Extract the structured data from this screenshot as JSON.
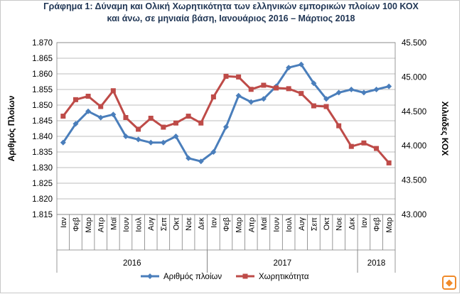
{
  "chart_data": {
    "type": "line",
    "title_line1": "Γράφημα 1: Δύναμη και Ολική Χωρητικότητα των ελληνικών εμπορικών πλοίων 100 ΚΟΧ",
    "title_line2": "και άνω, σε μηνιαία βάση, Ιανουάριος  2016 – Μάρτιος  2018",
    "ylabel_left": "Αριθμός Πλοίων",
    "ylabel_right": "Χιλιάδες ΚΟΧ",
    "categories": [
      "Ιαν",
      "Φεβ",
      "Μαρ",
      "Απρ",
      "Μαϊ",
      "Ιουν",
      "Ιουλ",
      "Αυγ",
      "Σεπ",
      "Οκτ",
      "Νοε",
      "Δεκ",
      "Ιαν",
      "Φεβ",
      "Μαρ",
      "Απρ",
      "Μαϊ",
      "Ιουν",
      "Ιουλ",
      "Αυγ",
      "Σεπ",
      "Οκτ",
      "Νοε",
      "Δεκ",
      "Ιαν",
      "Φεβ",
      "Μαρ"
    ],
    "year_groups": [
      {
        "label": "2016",
        "start": 0,
        "end": 11
      },
      {
        "label": "2017",
        "start": 12,
        "end": 23
      },
      {
        "label": "2018",
        "start": 24,
        "end": 26
      }
    ],
    "left_axis": {
      "min": 1815,
      "max": 1870,
      "step": 5,
      "tick_labels": [
        "1.815",
        "1.820",
        "1.825",
        "1.830",
        "1.835",
        "1.840",
        "1.845",
        "1.850",
        "1.855",
        "1.860",
        "1.865",
        "1.870"
      ]
    },
    "right_axis": {
      "min": 43000,
      "max": 45500,
      "step": 500,
      "tick_labels": [
        "43.000",
        "43.500",
        "44.000",
        "44.500",
        "45.000",
        "45.500"
      ]
    },
    "grid": true,
    "legend_position": "bottom",
    "series": [
      {
        "name": "Αριθμός πλοίων",
        "axis": "left",
        "color": "#4a7ebb",
        "marker": "diamond",
        "values": [
          1838,
          1844,
          1848,
          1846,
          1847,
          1840,
          1839,
          1838,
          1838,
          1840,
          1833,
          1832,
          1835,
          1843,
          1853,
          1851,
          1852,
          1856,
          1862,
          1863,
          1857,
          1852,
          1854,
          1855,
          1854,
          1855,
          1856
        ]
      },
      {
        "name": "Χωρητικότητα",
        "axis": "right",
        "color": "#be4b48",
        "marker": "square",
        "values": [
          44430,
          44670,
          44720,
          44570,
          44800,
          44410,
          44240,
          44400,
          44270,
          44330,
          44430,
          44330,
          44710,
          45010,
          45000,
          44820,
          44880,
          44840,
          44830,
          44760,
          44580,
          44570,
          44290,
          43990,
          44040,
          43960,
          43750
        ]
      }
    ]
  },
  "watermark_glyph": "◆"
}
